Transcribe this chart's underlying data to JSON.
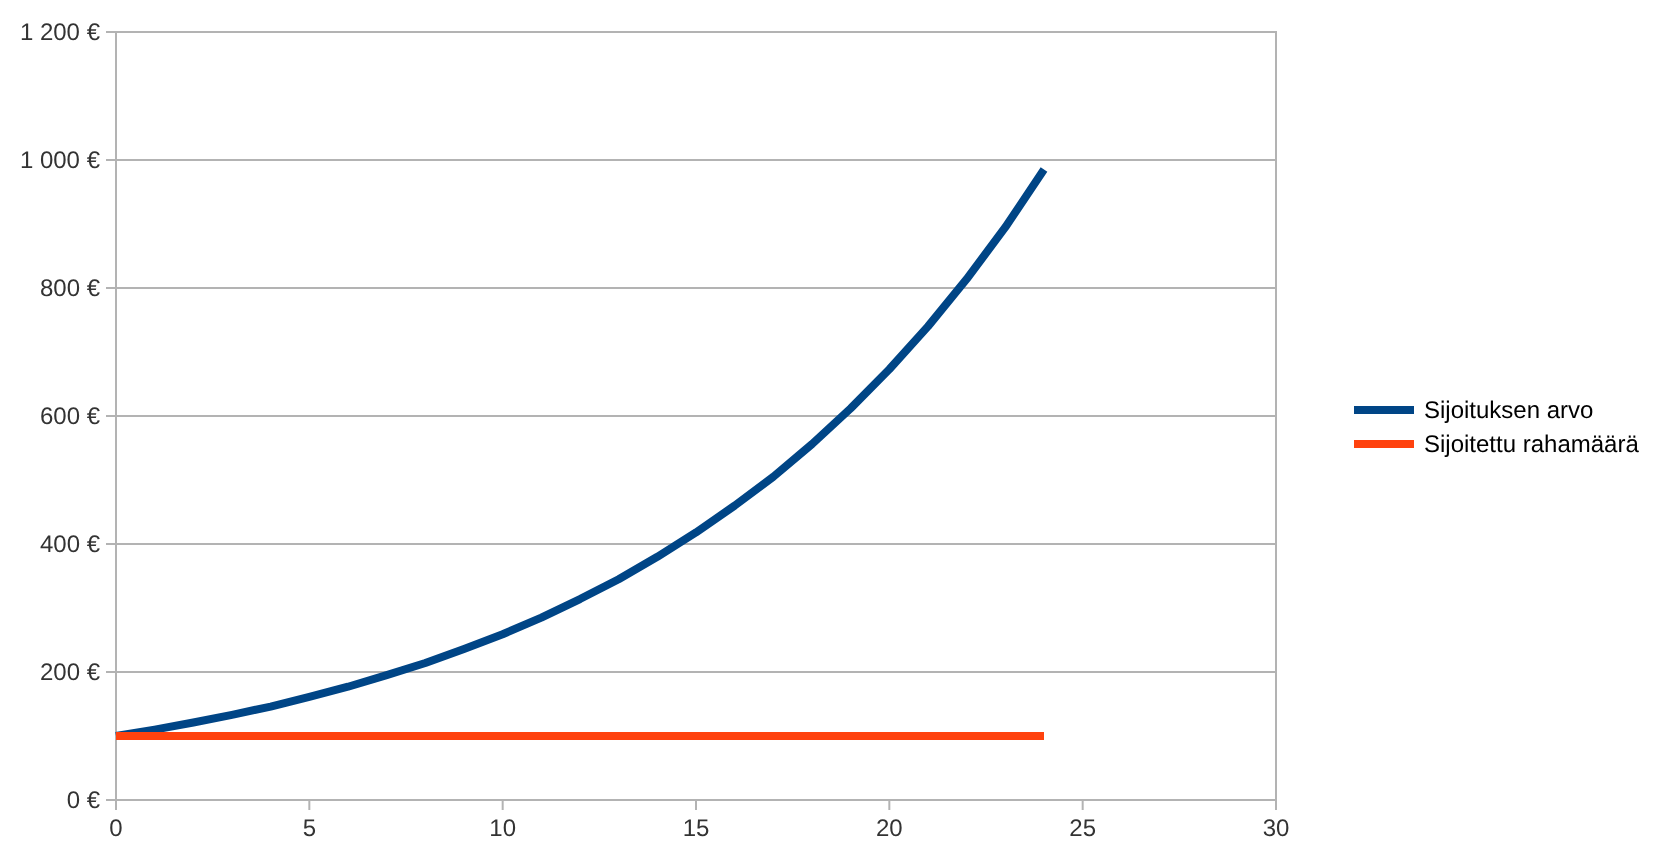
{
  "chart_data": {
    "type": "line",
    "x": [
      0,
      1,
      2,
      3,
      4,
      5,
      6,
      7,
      8,
      9,
      10,
      11,
      12,
      13,
      14,
      15,
      16,
      17,
      18,
      19,
      20,
      21,
      22,
      23,
      24
    ],
    "series": [
      {
        "name": "Sijoituksen arvo",
        "color": "#004586",
        "values": [
          100,
          110,
          121,
          133,
          146,
          161,
          177,
          195,
          214,
          236,
          259,
          285,
          314,
          345,
          380,
          418,
          460,
          505,
          556,
          612,
          673,
          740,
          814,
          895,
          985
        ]
      },
      {
        "name": "Sijoitettu rahamäärä",
        "color": "#ff420e",
        "values": [
          100,
          100,
          100,
          100,
          100,
          100,
          100,
          100,
          100,
          100,
          100,
          100,
          100,
          100,
          100,
          100,
          100,
          100,
          100,
          100,
          100,
          100,
          100,
          100,
          100
        ]
      }
    ],
    "xlim": [
      0,
      30
    ],
    "xticks": [
      0,
      5,
      10,
      15,
      20,
      25,
      30
    ],
    "ylim": [
      0,
      1200
    ],
    "yticks": [
      {
        "value": 0,
        "label": "0 €"
      },
      {
        "value": 200,
        "label": "200 €"
      },
      {
        "value": 400,
        "label": "400 €"
      },
      {
        "value": 600,
        "label": "600 €"
      },
      {
        "value": 800,
        "label": "800 €"
      },
      {
        "value": 1000,
        "label": "1 000 €"
      },
      {
        "value": 1200,
        "label": "1 200 €"
      }
    ],
    "grid": "y",
    "legend": "right"
  }
}
